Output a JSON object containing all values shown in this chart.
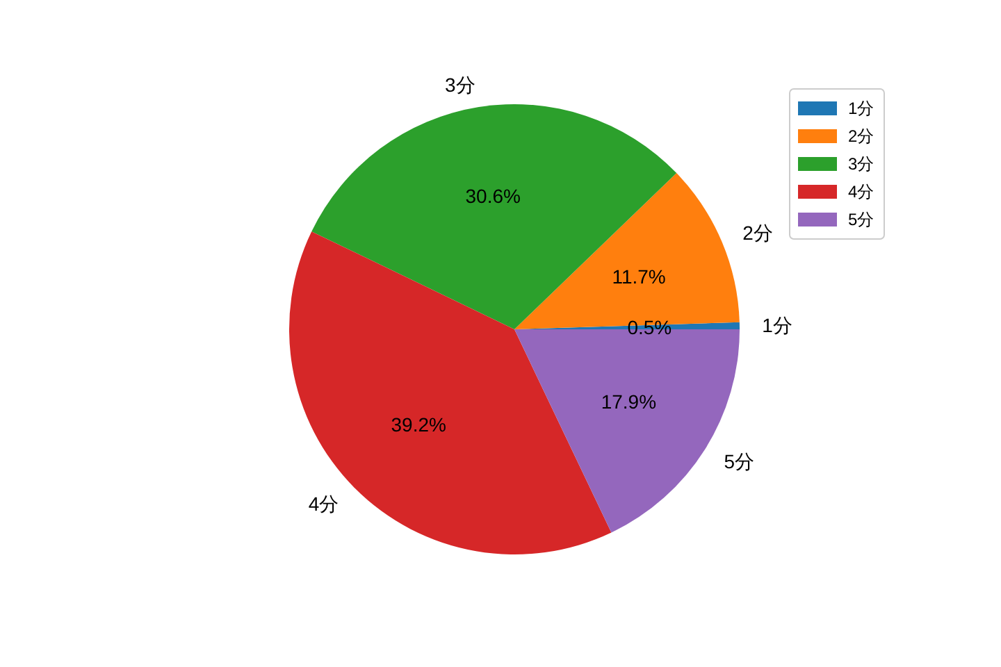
{
  "chart_data": {
    "type": "pie",
    "categories": [
      "1分",
      "2分",
      "3分",
      "4分",
      "5分"
    ],
    "values": [
      0.5,
      11.7,
      30.6,
      39.2,
      17.9
    ],
    "value_labels": [
      "0.5%",
      "11.7%",
      "30.6%",
      "39.2%",
      "17.9%"
    ],
    "colors": [
      "#1f77b4",
      "#ff7f0e",
      "#2ca02c",
      "#d62728",
      "#9467bd"
    ],
    "legend": "top right"
  }
}
